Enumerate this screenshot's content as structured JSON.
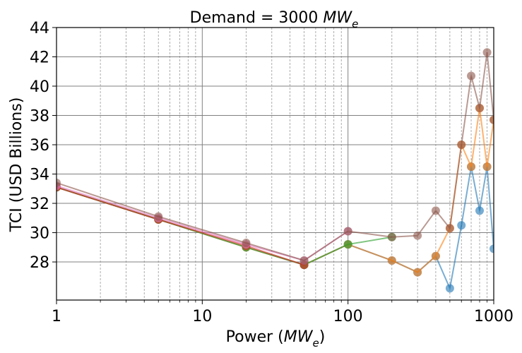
{
  "chart_data": {
    "type": "line",
    "title_main": "Demand  = 3000 ",
    "title_math": "MW",
    "title_sub": "e",
    "xlabel_main": "Power (",
    "xlabel_math": "MW",
    "xlabel_sub": "e",
    "xlabel_close": ")",
    "ylabel": "TCI (USD Billions)",
    "xscale": "log",
    "xlim": [
      1,
      1000
    ],
    "ylim": [
      25.4,
      44
    ],
    "x_ticks": [
      1,
      10,
      100,
      1000
    ],
    "x_tick_labels": [
      "1",
      "10",
      "100",
      "1000"
    ],
    "y_ticks": [
      28,
      30,
      32,
      34,
      36,
      38,
      40,
      42,
      44
    ],
    "y_tick_labels": [
      "28",
      "30",
      "32",
      "34",
      "36",
      "38",
      "40",
      "42",
      "44"
    ],
    "grid": true,
    "legend": "none",
    "series": [
      {
        "color": "#1f77b4",
        "x": [
          1,
          5,
          20,
          50,
          100,
          200,
          300,
          400,
          500,
          600,
          700,
          800,
          900,
          1000
        ],
        "y": [
          33.1,
          30.9,
          29.0,
          27.8,
          29.2,
          28.1,
          27.3,
          28.4,
          26.2,
          30.5,
          34.5,
          31.5,
          34.5,
          28.9
        ]
      },
      {
        "color": "#ff7f0e",
        "x": [
          1,
          5,
          20,
          50,
          100,
          200,
          300,
          400,
          500,
          600,
          700,
          800,
          900,
          1000
        ],
        "y": [
          33.1,
          30.9,
          29.0,
          27.8,
          29.2,
          28.1,
          27.3,
          28.4,
          30.3,
          36.0,
          34.5,
          38.5,
          34.5,
          37.7
        ]
      },
      {
        "color": "#2ca02c",
        "x": [
          1,
          5,
          20,
          50,
          100,
          200
        ],
        "y": [
          33.1,
          30.9,
          29.0,
          27.8,
          29.2,
          29.7
        ]
      },
      {
        "color": "#d62728",
        "x": [
          1,
          5,
          20,
          50
        ],
        "y": [
          33.1,
          30.9,
          29.1,
          27.8
        ]
      },
      {
        "color": "#e377c2",
        "x": [
          1,
          5,
          20,
          50,
          100
        ],
        "y": [
          33.2,
          31.0,
          29.2,
          28.1,
          30.1
        ]
      },
      {
        "color": "#8c564b",
        "x": [
          1,
          5,
          20,
          50,
          100,
          200,
          300,
          400,
          500,
          600,
          700,
          800,
          900,
          1000
        ],
        "y": [
          33.4,
          31.1,
          29.3,
          28.1,
          30.1,
          29.7,
          29.8,
          31.5,
          30.3,
          36.0,
          40.7,
          38.5,
          42.3,
          37.7
        ]
      }
    ]
  }
}
